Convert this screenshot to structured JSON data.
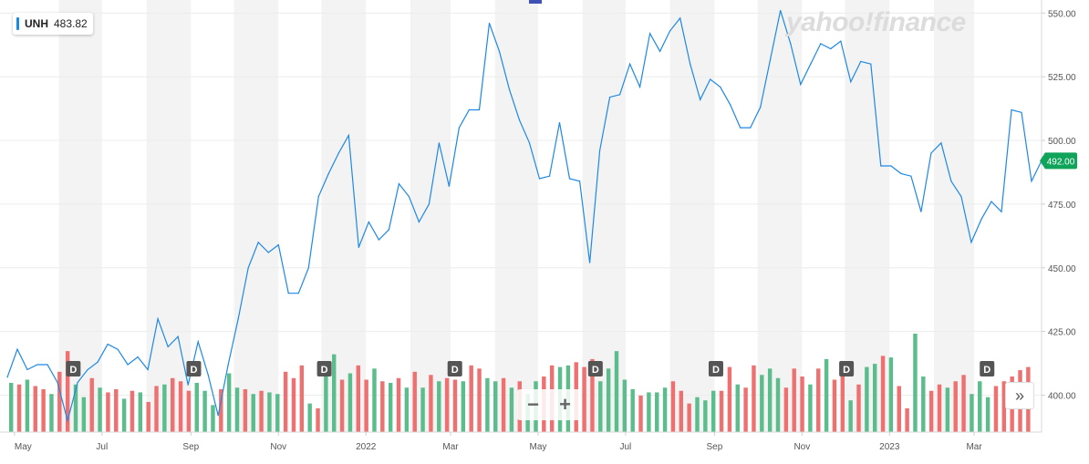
{
  "ticker": {
    "symbol": "UNH",
    "value": "483.82"
  },
  "watermark": "yahoo!finance",
  "zoom": {
    "minus": "−",
    "plus": "+"
  },
  "more_label": "»",
  "colors": {
    "price_line": "#1e88e5",
    "volume_up": "#5bbd8c",
    "volume_down": "#ee7070",
    "current_price_tag": "#10a35a",
    "band": "#f3f3f3",
    "dividend_marker": "#555555"
  },
  "chart_data": {
    "type": "line",
    "current_price_label": "492.00",
    "current_price": 492.0,
    "x_tick_labels": [
      "May",
      "Jul",
      "Sep",
      "Nov",
      "2022",
      "Mar",
      "May",
      "Jul",
      "Sep",
      "Nov",
      "2023",
      "Mar"
    ],
    "y_tick_labels": [
      "550.00",
      "525.00",
      "500.00",
      "475.00",
      "450.00",
      "425.00",
      "400.00"
    ],
    "y_ticks": [
      550,
      525,
      500,
      475,
      450,
      425,
      400
    ],
    "ylim": [
      385.5,
      553.7
    ],
    "x_range": [
      "2021-04-26",
      "2023-04-17"
    ],
    "shaded_months": [
      "2021-06",
      "2021-08",
      "2021-10",
      "2021-12",
      "2022-02",
      "2022-04",
      "2022-06",
      "2022-08",
      "2022-10",
      "2022-12",
      "2023-02"
    ],
    "dividend_dates": [
      "2021-06-11",
      "2021-09-03",
      "2021-12-03",
      "2022-03-04",
      "2022-06-10",
      "2022-09-02",
      "2022-12-02",
      "2023-03-10"
    ],
    "dividend_label": "D",
    "series": [
      {
        "x": [
          "2021-04-26",
          "2021-05-03",
          "2021-05-10",
          "2021-05-17",
          "2021-05-24",
          "2021-05-31",
          "2021-06-07",
          "2021-06-14",
          "2021-06-21",
          "2021-06-28",
          "2021-07-05",
          "2021-07-12",
          "2021-07-19",
          "2021-07-26",
          "2021-08-02",
          "2021-08-09",
          "2021-08-16",
          "2021-08-23",
          "2021-08-30",
          "2021-09-06",
          "2021-09-13",
          "2021-09-20",
          "2021-09-27",
          "2021-10-04",
          "2021-10-11",
          "2021-10-18",
          "2021-10-25",
          "2021-11-01",
          "2021-11-08",
          "2021-11-15",
          "2021-11-22",
          "2021-11-29",
          "2021-12-06",
          "2021-12-13",
          "2021-12-20",
          "2021-12-27",
          "2022-01-03",
          "2022-01-10",
          "2022-01-17",
          "2022-01-24",
          "2022-01-31",
          "2022-02-07",
          "2022-02-14",
          "2022-02-21",
          "2022-02-28",
          "2022-03-07",
          "2022-03-14",
          "2022-03-21",
          "2022-03-28",
          "2022-04-04",
          "2022-04-11",
          "2022-04-18",
          "2022-04-25",
          "2022-05-02",
          "2022-05-09",
          "2022-05-16",
          "2022-05-23",
          "2022-05-30",
          "2022-06-06",
          "2022-06-13",
          "2022-06-20",
          "2022-06-27",
          "2022-07-04",
          "2022-07-11",
          "2022-07-18",
          "2022-07-25",
          "2022-08-01",
          "2022-08-08",
          "2022-08-15",
          "2022-08-22",
          "2022-08-29",
          "2022-09-05",
          "2022-09-12",
          "2022-09-19",
          "2022-09-26",
          "2022-10-03",
          "2022-10-10",
          "2022-10-17",
          "2022-10-24",
          "2022-10-31",
          "2022-11-07",
          "2022-11-14",
          "2022-11-21",
          "2022-11-28",
          "2022-12-05",
          "2022-12-12",
          "2022-12-19",
          "2022-12-26",
          "2023-01-02",
          "2023-01-09",
          "2023-01-16",
          "2023-01-23",
          "2023-01-30",
          "2023-02-06",
          "2023-02-13",
          "2023-02-20",
          "2023-02-27",
          "2023-03-06",
          "2023-03-13",
          "2023-03-20",
          "2023-03-27",
          "2023-04-03",
          "2023-04-10",
          "2023-04-17"
        ],
        "values": [
          407,
          418,
          410,
          412,
          412,
          405,
          390,
          405,
          410,
          413,
          420,
          418,
          412,
          415,
          410,
          430,
          419,
          423,
          404,
          421,
          408,
          392,
          412,
          430,
          450,
          460,
          456,
          459,
          440,
          440,
          450,
          478,
          487,
          495,
          502,
          458,
          468,
          461,
          465,
          483,
          478,
          468,
          475,
          499,
          482,
          505,
          512,
          512,
          546,
          535,
          520,
          508,
          499,
          485,
          486,
          507,
          485,
          484,
          452,
          496,
          517,
          518,
          530,
          521,
          542,
          535,
          543,
          548,
          530,
          516,
          524,
          521,
          514,
          505,
          505,
          513,
          532,
          551,
          538,
          522,
          530,
          538,
          536,
          539,
          523,
          531,
          530,
          490,
          490,
          487,
          486,
          472,
          495,
          499,
          484,
          478,
          460,
          469,
          476,
          472,
          512,
          511,
          484,
          492
        ]
      }
    ],
    "volume": {
      "values": [
        310,
        300,
        330,
        290,
        270,
        240,
        380,
        510,
        300,
        220,
        340,
        280,
        250,
        270,
        210,
        260,
        250,
        190,
        290,
        300,
        340,
        320,
        260,
        310,
        260,
        170,
        270,
        370,
        280,
        270,
        240,
        260,
        250,
        240,
        380,
        340,
        420,
        180,
        150,
        420,
        490,
        330,
        370,
        420,
        330,
        400,
        320,
        310,
        340,
        280,
        380,
        280,
        360,
        320,
        340,
        330,
        320,
        420,
        400,
        340,
        320,
        340,
        280,
        320,
        240,
        320,
        350,
        420,
        410,
        420,
        440,
        410,
        460,
        320,
        400,
        510,
        330,
        270,
        230,
        250,
        250,
        280,
        320,
        260,
        180,
        220,
        200,
        260,
        260,
        410,
        300,
        280,
        420,
        360,
        400,
        340,
        280,
        400,
        350,
        300,
        400,
        460,
        330,
        380,
        200,
        300,
        410,
        430,
        480,
        470,
        290,
        150,
        620,
        350,
        260,
        300,
        280,
        320,
        360,
        240,
        320,
        220,
        290,
        320,
        350,
        390,
        410
      ],
      "colors": [
        "up",
        "down",
        "up",
        "down",
        "down",
        "up",
        "down",
        "down",
        "up",
        "up",
        "down",
        "up",
        "down",
        "down",
        "up",
        "down",
        "up",
        "down",
        "down",
        "up",
        "down",
        "down",
        "down",
        "up",
        "up",
        "up",
        "down",
        "up",
        "up",
        "down",
        "up",
        "down",
        "up",
        "up",
        "down",
        "down",
        "down",
        "up",
        "down",
        "up",
        "up",
        "down",
        "up",
        "down",
        "down",
        "up",
        "down",
        "up",
        "down",
        "up",
        "down",
        "up",
        "down",
        "up",
        "down",
        "down",
        "up",
        "down",
        "down",
        "up",
        "up",
        "down",
        "up",
        "down",
        "up",
        "up",
        "down",
        "down",
        "up",
        "up",
        "down",
        "down",
        "down",
        "up",
        "up",
        "up",
        "up",
        "up",
        "down",
        "up",
        "up",
        "up",
        "down",
        "down",
        "down",
        "up",
        "up",
        "up",
        "down",
        "down",
        "up",
        "down",
        "down",
        "up",
        "up",
        "up",
        "down",
        "down",
        "down",
        "up",
        "down",
        "up",
        "down",
        "down",
        "up",
        "down",
        "up",
        "up",
        "down",
        "up",
        "down",
        "down",
        "up",
        "up",
        "down",
        "down",
        "up",
        "down",
        "down",
        "up",
        "up",
        "up",
        "down",
        "down",
        "down",
        "down",
        "down"
      ]
    },
    "grid": true,
    "legend_position": "top-left"
  }
}
